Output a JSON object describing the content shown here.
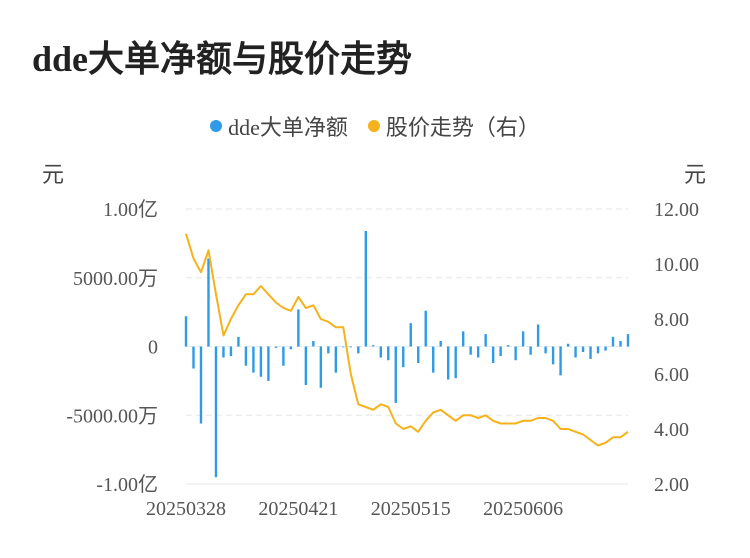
{
  "title": "dde大单净额与股价走势",
  "legend": [
    {
      "label": "dde大单净额",
      "color": "#2f9ae6"
    },
    {
      "label": "股价走势（右）",
      "color": "#f5b21b"
    }
  ],
  "left_unit": "元",
  "right_unit": "元",
  "chart_data": {
    "type": "bar",
    "title": "dde大单净额与股价走势",
    "left_axis": {
      "ticks": [
        {
          "value": 10000,
          "label": "1.00亿"
        },
        {
          "value": 5000,
          "label": "5000.00万"
        },
        {
          "value": 0,
          "label": "0"
        },
        {
          "value": -5000,
          "label": "-5000.00万"
        },
        {
          "value": -10000,
          "label": "-1.00亿"
        }
      ],
      "ylim": [
        -10000,
        10000
      ],
      "unit": "元"
    },
    "right_axis": {
      "ticks": [
        {
          "value": 12,
          "label": "12.00"
        },
        {
          "value": 10,
          "label": "10.00"
        },
        {
          "value": 8,
          "label": "8.00"
        },
        {
          "value": 6,
          "label": "6.00"
        },
        {
          "value": 4,
          "label": "4.00"
        },
        {
          "value": 2,
          "label": "2.00"
        }
      ],
      "ylim": [
        2,
        12
      ],
      "unit": "元"
    },
    "x_tick_labels": [
      {
        "index": 0,
        "label": "20250328"
      },
      {
        "index": 15,
        "label": "20250421"
      },
      {
        "index": 30,
        "label": "20250515"
      },
      {
        "index": 45,
        "label": "20250606"
      }
    ],
    "grid": true,
    "series": [
      {
        "name": "dde大单净额",
        "type": "bar",
        "axis": "left",
        "color": "#2f9ae6",
        "values": [
          2200,
          -1600,
          -5600,
          6400,
          -9500,
          -800,
          -700,
          700,
          -1400,
          -1900,
          -2200,
          -2500,
          -100,
          -1400,
          -200,
          2700,
          -2800,
          400,
          -3000,
          -500,
          -1900,
          0,
          0,
          -500,
          8400,
          100,
          -800,
          -1000,
          -4100,
          -1500,
          1700,
          -1200,
          2600,
          -1900,
          400,
          -2400,
          -2300,
          1100,
          -600,
          -800,
          900,
          -1200,
          -700,
          100,
          -1000,
          1100,
          -600,
          1600,
          -500,
          -1300,
          -2100,
          200,
          -800,
          -400,
          -900,
          -500,
          -300,
          700,
          400,
          900
        ]
      },
      {
        "name": "股价走势（右）",
        "type": "line",
        "axis": "right",
        "color": "#f5b21b",
        "values": [
          11.1,
          10.2,
          9.7,
          10.5,
          8.9,
          7.4,
          8.0,
          8.5,
          8.9,
          8.9,
          9.2,
          8.9,
          8.6,
          8.4,
          8.3,
          8.8,
          8.4,
          8.5,
          8.0,
          7.9,
          7.7,
          7.7,
          6.0,
          4.9,
          4.8,
          4.7,
          4.9,
          4.8,
          4.2,
          4.0,
          4.1,
          3.9,
          4.3,
          4.6,
          4.7,
          4.5,
          4.3,
          4.5,
          4.5,
          4.4,
          4.5,
          4.3,
          4.2,
          4.2,
          4.2,
          4.3,
          4.3,
          4.4,
          4.4,
          4.3,
          4.0,
          4.0,
          3.9,
          3.8,
          3.6,
          3.4,
          3.5,
          3.7,
          3.7,
          3.9
        ]
      }
    ]
  }
}
